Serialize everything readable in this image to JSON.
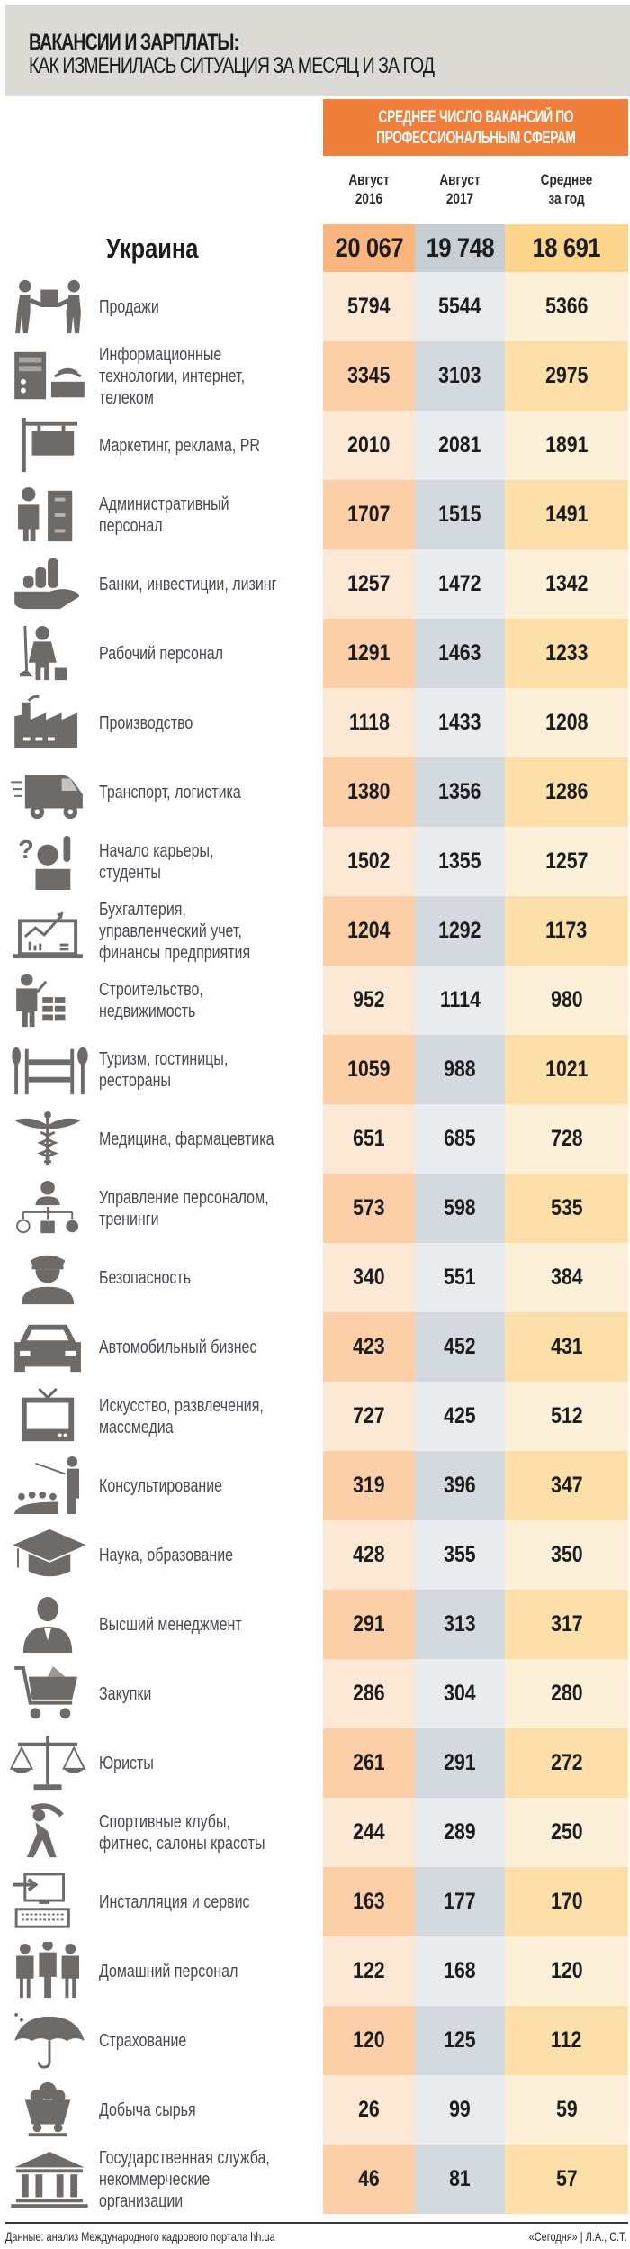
{
  "title": {
    "line1": "ВАКАНСИИ И ЗАРПЛАТЫ:",
    "line2": "КАК ИЗМЕНИЛАСЬ СИТУАЦИЯ ЗА МЕСЯЦ И ЗА ГОД"
  },
  "section_header": {
    "line1": "СРЕДНЕЕ ЧИСЛО ВАКАНСИЙ ПО",
    "line2": "ПРОФЕССИОНАЛЬНЫМ СФЕРАМ"
  },
  "columns": [
    {
      "line1": "Август",
      "line2": "2016"
    },
    {
      "line1": "Август",
      "line2": "2017"
    },
    {
      "line1": "Среднее",
      "line2": "за год"
    }
  ],
  "colors": {
    "title_bg": "#dcdad5",
    "header_orange": "#f07f3c",
    "col_2016": "#fbb57d",
    "col_2017": "#c6cdd3",
    "col_avg": "#fcd48b",
    "icon_gray": "#6e6a67"
  },
  "total": {
    "label": "Украина",
    "aug2016": "20 067",
    "aug2017": "19 748",
    "avg": "18 691"
  },
  "rows": [
    {
      "icon": "handshake-delivery-icon",
      "label": "Продажи",
      "aug2016": "5794",
      "aug2017": "5544",
      "avg": "5366"
    },
    {
      "icon": "computer-keyboard-icon",
      "label": "Информационные технологии, интернет, телеком",
      "aug2016": "3345",
      "aug2017": "3103",
      "avg": "2975"
    },
    {
      "icon": "signboard-icon",
      "label": "Маркетинг, реклама, PR",
      "aug2016": "2010",
      "aug2017": "2081",
      "avg": "1891"
    },
    {
      "icon": "office-worker-cabinet-icon",
      "label": "Административный персонал",
      "aug2016": "1707",
      "aug2017": "1515",
      "avg": "1491"
    },
    {
      "icon": "coins-hand-icon",
      "label": "Банки, инвестиции, лизинг",
      "aug2016": "1257",
      "aug2017": "1472",
      "avg": "1342"
    },
    {
      "icon": "cleaner-icon",
      "label": "Рабочий персонал",
      "aug2016": "1291",
      "aug2017": "1463",
      "avg": "1233"
    },
    {
      "icon": "factory-icon",
      "label": "Производство",
      "aug2016": "1118",
      "aug2017": "1433",
      "avg": "1208"
    },
    {
      "icon": "delivery-truck-icon",
      "label": "Транспорт, логистика",
      "aug2016": "1380",
      "aug2017": "1356",
      "avg": "1286"
    },
    {
      "icon": "student-question-icon",
      "label": "Начало карьеры, студенты",
      "aug2016": "1502",
      "aug2017": "1355",
      "avg": "1257"
    },
    {
      "icon": "laptop-chart-icon",
      "label": "Бухгалтерия, управленческий учет, финансы предприятия",
      "aug2016": "1204",
      "aug2017": "1292",
      "avg": "1173"
    },
    {
      "icon": "builder-bricks-icon",
      "label": "Строительство, недвижимость",
      "aug2016": "952",
      "aug2017": "1114",
      "avg": "980"
    },
    {
      "icon": "hotel-restaurant-icon",
      "label": "Туризм, гостиницы, рестораны",
      "aug2016": "1059",
      "aug2017": "988",
      "avg": "1021"
    },
    {
      "icon": "caduceus-icon",
      "label": "Медицина, фармацевтика",
      "aug2016": "651",
      "aug2017": "685",
      "avg": "728"
    },
    {
      "icon": "hr-org-chart-icon",
      "label": "Управление персоналом, тренинги",
      "aug2016": "573",
      "aug2017": "598",
      "avg": "535"
    },
    {
      "icon": "security-guard-icon",
      "label": "Безопасность",
      "aug2016": "340",
      "aug2017": "551",
      "avg": "384"
    },
    {
      "icon": "car-icon",
      "label": "Автомобильный бизнес",
      "aug2016": "423",
      "aug2017": "452",
      "avg": "431"
    },
    {
      "icon": "tv-icon",
      "label": "Искусство, развлечения, массмедиа",
      "aug2016": "727",
      "aug2017": "425",
      "avg": "512"
    },
    {
      "icon": "presenter-audience-icon",
      "label": "Консультирование",
      "aug2016": "319",
      "aug2017": "396",
      "avg": "347"
    },
    {
      "icon": "graduation-cap-icon",
      "label": "Наука, образование",
      "aug2016": "428",
      "aug2017": "355",
      "avg": "350"
    },
    {
      "icon": "executive-icon",
      "label": "Высший менеджмент",
      "aug2016": "291",
      "aug2017": "313",
      "avg": "317"
    },
    {
      "icon": "shopping-cart-icon",
      "label": "Закупки",
      "aug2016": "286",
      "aug2017": "304",
      "avg": "280"
    },
    {
      "icon": "scales-icon",
      "label": "Юристы",
      "aug2016": "261",
      "aug2017": "291",
      "avg": "272"
    },
    {
      "icon": "stretching-person-icon",
      "label": "Спортивные клубы, фитнес, салоны красоты",
      "aug2016": "244",
      "aug2017": "289",
      "avg": "250"
    },
    {
      "icon": "monitor-keyboard-icon",
      "label": "Инсталляция и сервис",
      "aug2016": "163",
      "aug2017": "177",
      "avg": "170"
    },
    {
      "icon": "domestic-staff-icon",
      "label": "Домашний персонал",
      "aug2016": "122",
      "aug2017": "168",
      "avg": "120"
    },
    {
      "icon": "umbrella-icon",
      "label": "Страхование",
      "aug2016": "120",
      "aug2017": "125",
      "avg": "112"
    },
    {
      "icon": "mine-cart-icon",
      "label": "Добыча сырья",
      "aug2016": "26",
      "aug2017": "99",
      "avg": "59"
    },
    {
      "icon": "government-building-icon",
      "label": "Государственная служба, некоммерческие организации",
      "aug2016": "46",
      "aug2017": "81",
      "avg": "57"
    }
  ],
  "footer": {
    "source": "Данные: анализ Международного кадрового портала hh.ua",
    "credit": "«Сегодня» | Л.А., С.Т."
  },
  "chart_data": {
    "type": "table",
    "title": "ВАКАНСИИ И ЗАРПЛАТЫ: КАК ИЗМЕНИЛАСЬ СИТУАЦИЯ ЗА МЕСЯЦ И ЗА ГОД",
    "subtitle": "СРЕДНЕЕ ЧИСЛО ВАКАНСИЙ ПО ПРОФЕССИОНАЛЬНЫМ СФЕРАМ",
    "columns": [
      "Август 2016",
      "Август 2017",
      "Среднее за год"
    ],
    "categories": [
      "Украина",
      "Продажи",
      "Информационные технологии, интернет, телеком",
      "Маркетинг, реклама, PR",
      "Административный персонал",
      "Банки, инвестиции, лизинг",
      "Рабочий персонал",
      "Производство",
      "Транспорт, логистика",
      "Начало карьеры, студенты",
      "Бухгалтерия, управленческий учет, финансы предприятия",
      "Строительство, недвижимость",
      "Туризм, гостиницы, рестораны",
      "Медицина, фармацевтика",
      "Управление персоналом, тренинги",
      "Безопасность",
      "Автомобильный бизнес",
      "Искусство, развлечения, массмедиа",
      "Консультирование",
      "Наука, образование",
      "Высший менеджмент",
      "Закупки",
      "Юристы",
      "Спортивные клубы, фитнес, салоны красоты",
      "Инсталляция и сервис",
      "Домашний персонал",
      "Страхование",
      "Добыча сырья",
      "Государственная служба, некоммерческие организации"
    ],
    "series": [
      {
        "name": "Август 2016",
        "values": [
          20067,
          5794,
          3345,
          2010,
          1707,
          1257,
          1291,
          1118,
          1380,
          1502,
          1204,
          952,
          1059,
          651,
          573,
          340,
          423,
          727,
          319,
          428,
          291,
          286,
          261,
          244,
          163,
          122,
          120,
          26,
          46
        ]
      },
      {
        "name": "Август 2017",
        "values": [
          19748,
          5544,
          3103,
          2081,
          1515,
          1472,
          1463,
          1433,
          1356,
          1355,
          1292,
          1114,
          988,
          685,
          598,
          551,
          452,
          425,
          396,
          355,
          313,
          304,
          291,
          289,
          177,
          168,
          125,
          99,
          81
        ]
      },
      {
        "name": "Среднее за год",
        "values": [
          18691,
          5366,
          2975,
          1891,
          1491,
          1342,
          1233,
          1208,
          1286,
          1257,
          1173,
          980,
          1021,
          728,
          535,
          384,
          431,
          512,
          347,
          350,
          317,
          280,
          272,
          250,
          170,
          120,
          112,
          59,
          57
        ]
      }
    ],
    "source": "Данные: анализ Международного кадрового портала hh.ua"
  }
}
